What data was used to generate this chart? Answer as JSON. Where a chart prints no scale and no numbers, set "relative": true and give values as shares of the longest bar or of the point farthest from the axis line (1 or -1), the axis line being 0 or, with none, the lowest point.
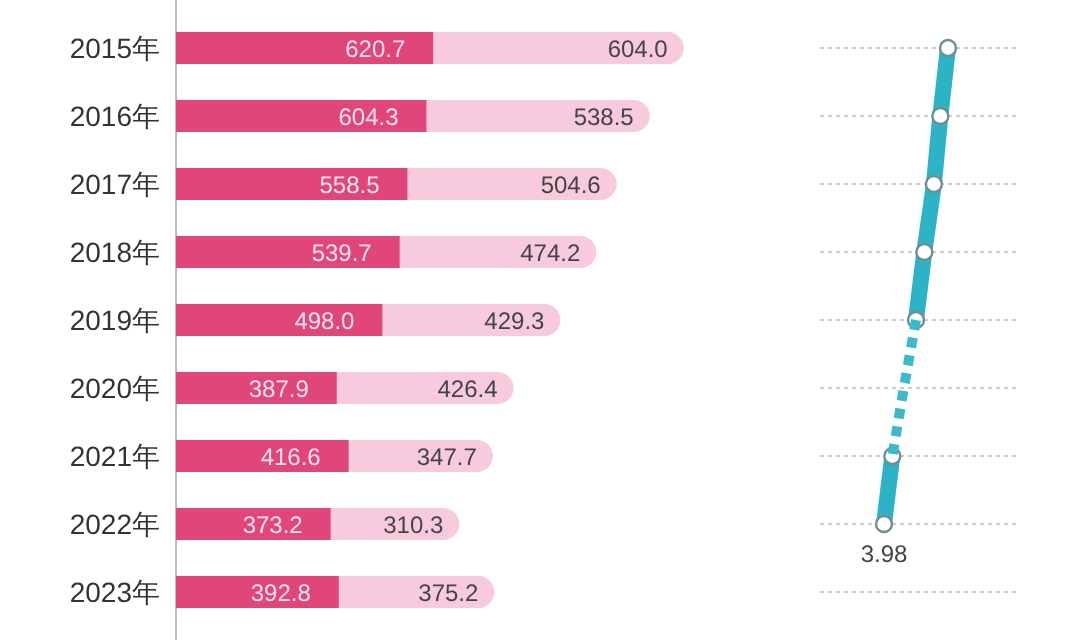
{
  "chart_data": [
    {
      "type": "bar",
      "orientation": "horizontal",
      "stacked": true,
      "categories": [
        "2015年",
        "2016年",
        "2017年",
        "2018年",
        "2019年",
        "2020年",
        "2021年",
        "2022年",
        "2023年"
      ],
      "series": [
        {
          "color": "#e0457b",
          "values": [
            620.7,
            604.3,
            558.5,
            539.7,
            498.0,
            387.9,
            416.6,
            373.2,
            392.8
          ],
          "value_labels": [
            "620.7",
            "604.3",
            "558.5",
            "539.7",
            "498.0",
            "387.9",
            "416.6",
            "373.2",
            "392.8"
          ]
        },
        {
          "color": "#f8cadd",
          "values": [
            604.0,
            538.5,
            504.6,
            474.2,
            429.3,
            426.4,
            347.7,
            310.3,
            375.2
          ],
          "value_labels": [
            "604.0",
            "538.5",
            "504.6",
            "474.2",
            "429.3",
            "426.4",
            "347.7",
            "310.3",
            "375.2"
          ]
        }
      ],
      "tick_labels": "y"
    },
    {
      "type": "line",
      "orientation": "horizontal",
      "relative": true,
      "categories": [
        null,
        null,
        null,
        null,
        null,
        null,
        null,
        null,
        null
      ],
      "series": [
        {
          "color": "#2db3c6",
          "values": [
            1,
            0.88,
            0.78,
            0.63,
            0.5,
            null,
            0.13,
            0,
            null
          ],
          "marker": "circle",
          "line_style": "solid"
        },
        {
          "color": "#3bbacc",
          "values": [
            null,
            null,
            null,
            null,
            0.5,
            0.31,
            0.13,
            null,
            null
          ],
          "marker": "none",
          "line_style": "dotted"
        }
      ],
      "grid": true,
      "tick_labels": false,
      "annotations": [
        "3.98"
      ]
    }
  ]
}
